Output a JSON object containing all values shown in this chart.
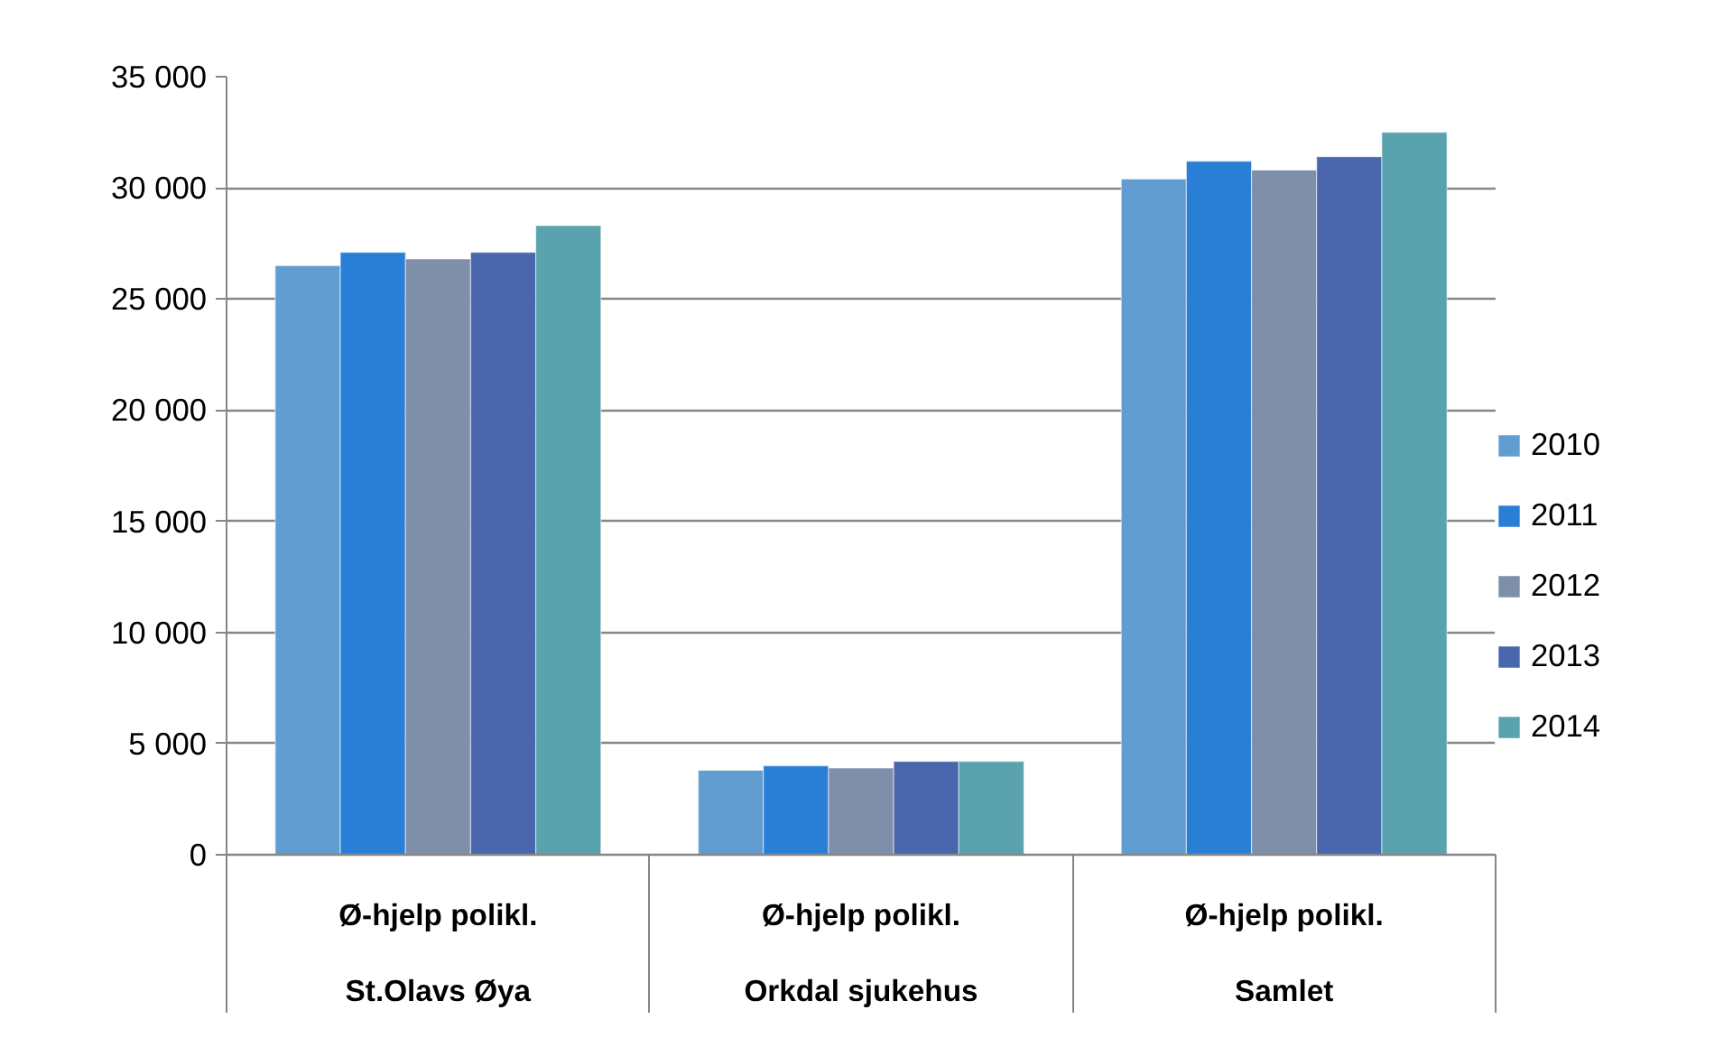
{
  "chart_data": {
    "type": "bar",
    "categories": [
      "Ø-hjelp polikl.\nSt.Olavs Øya",
      "Ø-hjelp polikl.\nOrkdal sjukehus",
      "Ø-hjelp polikl.\nSamlet"
    ],
    "series": [
      {
        "name": "2010",
        "color": "#629dd1",
        "values": [
          26500,
          3800,
          30400
        ]
      },
      {
        "name": "2011",
        "color": "#297fd5",
        "values": [
          27100,
          4000,
          31200
        ]
      },
      {
        "name": "2012",
        "color": "#7f8fa9",
        "values": [
          26800,
          3900,
          30800
        ]
      },
      {
        "name": "2013",
        "color": "#4a66ac",
        "values": [
          27100,
          4200,
          31400
        ]
      },
      {
        "name": "2014",
        "color": "#5aa2ae",
        "values": [
          28300,
          4200,
          32500
        ]
      }
    ],
    "ylim": [
      0,
      35000
    ],
    "yticks": [
      {
        "value": 0,
        "label": "0"
      },
      {
        "value": 5000,
        "label": "5 000"
      },
      {
        "value": 10000,
        "label": "10 000"
      },
      {
        "value": 15000,
        "label": "15 000"
      },
      {
        "value": 20000,
        "label": "20 000"
      },
      {
        "value": 25000,
        "label": "25 000"
      },
      {
        "value": 30000,
        "label": "30 000"
      },
      {
        "value": 35000,
        "label": "35 000"
      }
    ],
    "grid": "y",
    "legend": "right"
  }
}
